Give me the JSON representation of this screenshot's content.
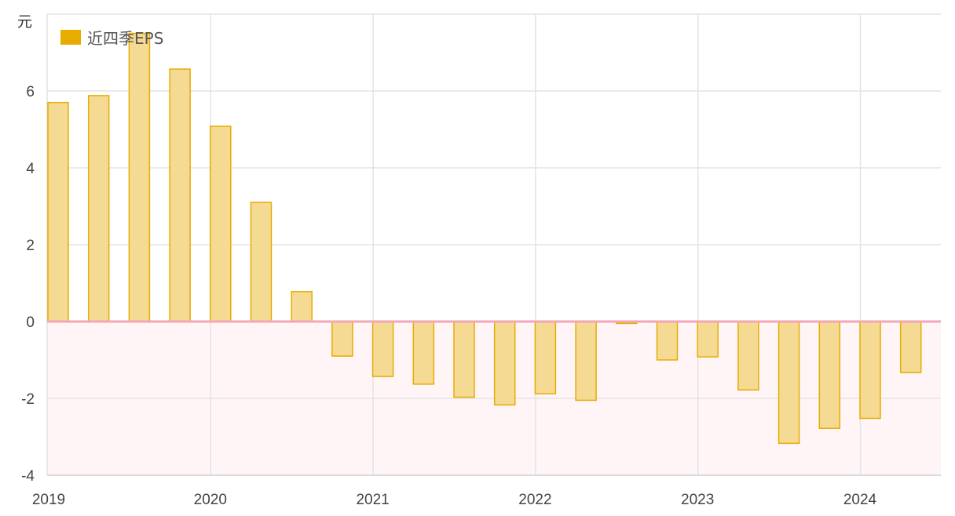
{
  "chart_data": {
    "type": "bar",
    "unit": "元",
    "series": [
      {
        "name": "近四季EPS",
        "color": "#e8ac00",
        "fill": "#f5da93",
        "values": [
          5.7,
          5.88,
          7.5,
          6.57,
          5.08,
          3.1,
          0.78,
          -0.9,
          -1.43,
          -1.63,
          -1.97,
          -2.17,
          -1.88,
          -2.05,
          -0.05,
          -1.0,
          -0.92,
          -1.78,
          -3.17,
          -2.78,
          -2.52,
          -1.33
        ]
      }
    ],
    "periods": [
      "2019Q1",
      "2019Q2",
      "2019Q3",
      "2019Q4",
      "2020Q1",
      "2020Q2",
      "2020Q3",
      "2020Q4",
      "2021Q1",
      "2021Q2",
      "2021Q3",
      "2021Q4",
      "2022Q1",
      "2022Q2",
      "2022Q3",
      "2022Q4",
      "2023Q1",
      "2023Q2",
      "2023Q3",
      "2023Q4",
      "2024Q1",
      "2024Q2"
    ],
    "x_ticks": [
      "2019",
      "2020",
      "2021",
      "2022",
      "2023",
      "2024"
    ],
    "y_ticks": [
      -4,
      -2,
      0,
      2,
      4,
      6
    ],
    "ylim": [
      -4,
      8
    ],
    "grid": true,
    "legend_position": "top-left",
    "negative_region_color": "#fff5f7",
    "zero_line_color": "#f2a7b6"
  }
}
